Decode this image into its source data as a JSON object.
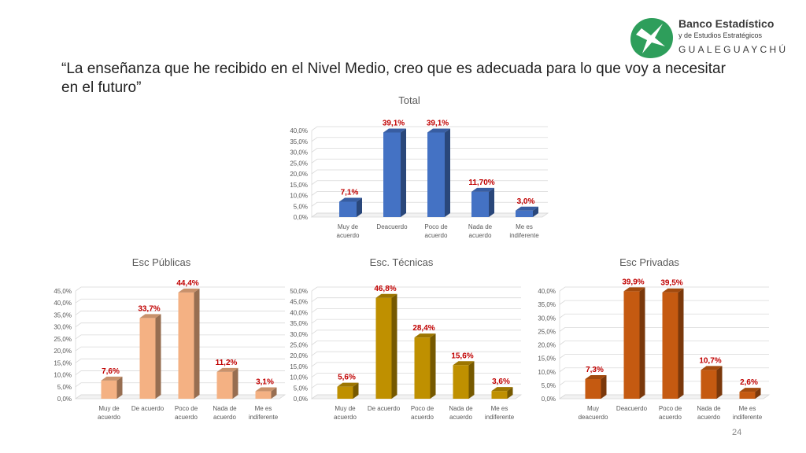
{
  "slide": {
    "title": "“La enseñanza que he recibido en el Nivel Medio, creo que es adecuada para lo que voy a necesitar en el futuro”",
    "page_number": "24"
  },
  "logo": {
    "name": "Banco Estadístico",
    "subtitle": "y de Estudios Estratégicos",
    "city": "GUALEGUAYCHÚ",
    "colors": {
      "green": "#2e9e5b",
      "text": "#3a3a3a"
    }
  },
  "chart_data": [
    {
      "type": "bar",
      "title": "Total",
      "categories": [
        "Muy de\nacuerdo",
        "Deacuerdo",
        "Poco de\nacuerdo",
        "Nada  de\nacuerdo",
        "Me es\nindiferente"
      ],
      "values": [
        7.1,
        39.1,
        39.1,
        11.7,
        3.0
      ],
      "data_labels": [
        "7,1%",
        "39,1%",
        "39,1%",
        "11,70%",
        "3,0%"
      ],
      "ylim": [
        0,
        40
      ],
      "yticks": [
        "0,0%",
        "5,0%",
        "10,0%",
        "15,0%",
        "20,0%",
        "25,0%",
        "30,0%",
        "35,0%",
        "40,0%"
      ],
      "color": "#4472c4",
      "grid": true
    },
    {
      "type": "bar",
      "title": "Esc Públicas",
      "categories": [
        "Muy de\nacuerdo",
        "De acuerdo",
        "Poco de\nacuerdo",
        "Nada de\nacuerdo",
        "Me es\nindiferente"
      ],
      "values": [
        7.6,
        33.7,
        44.4,
        11.2,
        3.1
      ],
      "data_labels": [
        "7,6%",
        "33,7%",
        "44,4%",
        "11,2%",
        "3,1%"
      ],
      "ylim": [
        0,
        45
      ],
      "yticks": [
        "0,0%",
        "5,0%",
        "10,0%",
        "15,0%",
        "20,0%",
        "25,0%",
        "30,0%",
        "35,0%",
        "40,0%",
        "45,0%"
      ],
      "color": "#f4b183",
      "grid": true
    },
    {
      "type": "bar",
      "title": "Esc. Técnicas",
      "categories": [
        "Muy de\nacuerdo",
        "De acuerdo",
        "Poco de\nacuerdo",
        "Nada de\nacuerdo",
        "Me es\nindiferente"
      ],
      "values": [
        5.6,
        46.8,
        28.4,
        15.6,
        3.6
      ],
      "data_labels": [
        "5,6%",
        "46,8%",
        "28,4%",
        "15,6%",
        "3,6%"
      ],
      "ylim": [
        0,
        50
      ],
      "yticks": [
        "0,0%",
        "5,0%",
        "10,0%",
        "15,0%",
        "20,0%",
        "25,0%",
        "30,0%",
        "35,0%",
        "40,0%",
        "45,0%",
        "50,0%"
      ],
      "color": "#bf9000",
      "grid": true
    },
    {
      "type": "bar",
      "title": "Esc Privadas",
      "categories": [
        "Muy\ndeacuerdo",
        "Deacuerdo",
        "Poco de\nacuerdo",
        "Nada de\nacuerdo",
        "Me es\nindiferente"
      ],
      "values": [
        7.3,
        39.9,
        39.5,
        10.7,
        2.6
      ],
      "data_labels": [
        "7,3%",
        "39,9%",
        "39,5%",
        "10,7%",
        "2,6%"
      ],
      "ylim": [
        0,
        40
      ],
      "yticks": [
        "0,0%",
        "5,0%",
        "10,0%",
        "15,0%",
        "20,0%",
        "25,0%",
        "30,0%",
        "35,0%",
        "40,0%"
      ],
      "color": "#c55a11",
      "grid": true
    }
  ],
  "label_color": "#c00000"
}
